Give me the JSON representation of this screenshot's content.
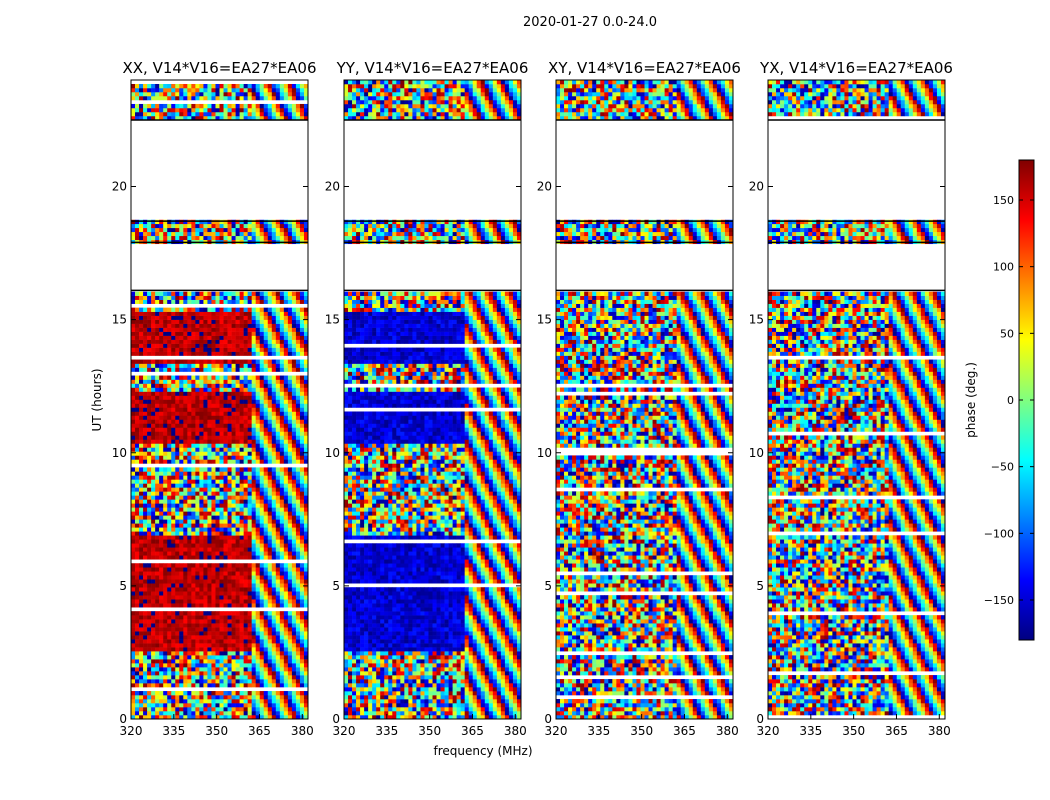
{
  "figure": {
    "suptitle": "2020-01-27 0.0-24.0",
    "xlabel": "frequency (MHz)",
    "ylabel": "UT (hours)"
  },
  "chart_data": {
    "type": "heatmap",
    "x": {
      "label": "frequency (MHz)",
      "range": [
        320,
        382
      ],
      "ticks": [
        320,
        335,
        350,
        365,
        380
      ]
    },
    "y": {
      "label": "UT (hours)",
      "range": [
        0,
        24
      ],
      "ticks": [
        0,
        5,
        10,
        15,
        20
      ]
    },
    "colorbar": {
      "label": "phase (deg.)",
      "range": [
        -180,
        180
      ],
      "ticks": [
        150,
        100,
        50,
        0,
        -50,
        -100,
        -150
      ],
      "tick_labels": [
        "150",
        "100",
        "50",
        "0",
        "−50",
        "−100",
        "−150"
      ],
      "colors": [
        "#000080",
        "#0000ff",
        "#0080ff",
        "#00ffff",
        "#80ff80",
        "#ffff00",
        "#ff8000",
        "#ff0000",
        "#800000"
      ]
    },
    "flagged_ut_hours": [
      [
        16.1,
        17.9
      ],
      [
        18.7,
        22.5
      ]
    ],
    "break_frequency_mhz": 361,
    "panels": [
      {
        "title": "XX, V14*V16=EA27*EA06",
        "dominant_phase_low_band_deg": 160
      },
      {
        "title": "YY, V14*V16=EA27*EA06",
        "dominant_phase_low_band_deg": -150
      },
      {
        "title": "XY, V14*V16=EA27*EA06",
        "dominant_phase_low_band_deg": null
      },
      {
        "title": "YX, V14*V16=EA27*EA06",
        "dominant_phase_low_band_deg": null
      }
    ]
  }
}
